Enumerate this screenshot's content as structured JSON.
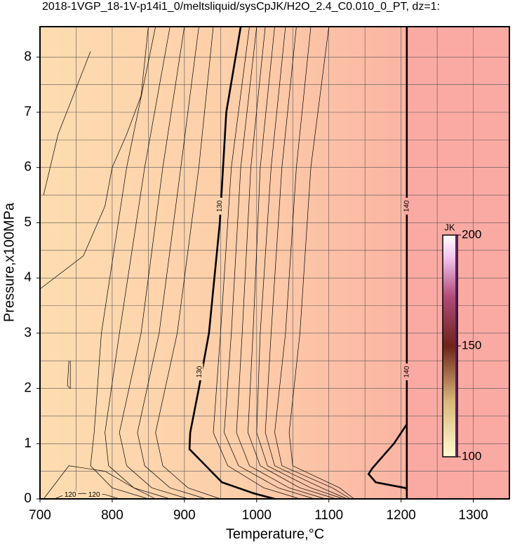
{
  "chart_data": {
    "type": "contour",
    "title": "2018-1VGP_18-1V-p14i1_0/meltsliquid/sysCpJK/H2O_2.4_C0.010_0_PT, dz=1:",
    "xlabel": "Temperature,°C",
    "ylabel": "Pressure,x100MPa",
    "xlim": [
      700,
      1350
    ],
    "ylim": [
      0,
      8.55
    ],
    "xticks": [
      700,
      800,
      900,
      1000,
      1100,
      1200,
      1300
    ],
    "yticks": [
      0,
      1,
      2,
      3,
      4,
      5,
      6,
      7,
      8
    ],
    "xgrid": [
      750,
      800,
      850,
      900,
      950,
      1000,
      1050,
      1100,
      1150,
      1200,
      1250,
      1300
    ],
    "ygrid": [
      0.5,
      1,
      1.5,
      2,
      2.5,
      3,
      3.5,
      4,
      4.5,
      5,
      5.5,
      6,
      6.5,
      7,
      7.5,
      8
    ],
    "grid": true,
    "contours": [
      {
        "level": 130,
        "x": [
          978,
          958,
          949,
          934,
          920,
          908,
          907,
          922,
          952,
          996,
          1025
        ],
        "y": [
          8.55,
          7,
          5,
          3,
          2,
          1.2,
          0.9,
          0.7,
          0.3,
          0.1,
          0
        ]
      },
      {
        "level": 140,
        "x": [
          1208,
          1208
        ],
        "y": [
          8.55,
          0
        ]
      },
      {
        "level": 140,
        "x": [
          1208,
          1190,
          1160,
          1155,
          1165,
          1205,
          1208
        ],
        "y": [
          1.35,
          1.0,
          0.55,
          0.45,
          0.3,
          0.2,
          0.18
        ]
      },
      {
        "level": 120,
        "x": [
          720,
          735,
          760,
          790,
          810
        ],
        "y": [
          0,
          0.08,
          0.1,
          0.08,
          0
        ]
      },
      {
        "x": [
          990,
          965,
          950,
          940,
          960,
          1010,
          1060
        ],
        "y": [
          8.55,
          6,
          3,
          1.2,
          0.6,
          0.2,
          0
        ]
      },
      {
        "x": [
          1000,
          978,
          965,
          955,
          975,
          1030,
          1080
        ],
        "y": [
          8.55,
          6,
          3,
          1.2,
          0.6,
          0.2,
          0
        ]
      },
      {
        "x": [
          1012,
          992,
          980,
          972,
          990,
          1045,
          1095
        ],
        "y": [
          8.55,
          6,
          3,
          1.2,
          0.6,
          0.2,
          0
        ]
      },
      {
        "x": [
          1025,
          1005,
          995,
          988,
          1005,
          1060,
          1110
        ],
        "y": [
          8.55,
          6,
          3,
          1.2,
          0.6,
          0.2,
          0
        ]
      },
      {
        "x": [
          1040,
          1020,
          1005,
          1000,
          1015,
          1075,
          1120
        ],
        "y": [
          8.55,
          6,
          3,
          1.2,
          0.6,
          0.2,
          0
        ]
      },
      {
        "x": [
          1055,
          1035,
          1020,
          1012,
          1025,
          1090,
          1125
        ],
        "y": [
          8.55,
          6,
          3,
          1.2,
          0.6,
          0.2,
          0
        ]
      },
      {
        "x": [
          1075,
          1055,
          1040,
          1025,
          1035,
          1105,
          1130
        ],
        "y": [
          8.55,
          6,
          3,
          1.2,
          0.6,
          0.2,
          0
        ]
      },
      {
        "x": [
          1100,
          1075,
          1060,
          1045,
          1050,
          1115,
          1135
        ],
        "y": [
          8.55,
          6,
          3,
          1.2,
          0.6,
          0.2,
          0
        ]
      },
      {
        "x": [
          940,
          920,
          890,
          860,
          870,
          905,
          950
        ],
        "y": [
          8.55,
          6,
          3,
          1.2,
          0.6,
          0.2,
          0
        ]
      },
      {
        "x": [
          920,
          895,
          865,
          835,
          845,
          880,
          930
        ],
        "y": [
          8.55,
          6,
          3,
          1.2,
          0.6,
          0.2,
          0
        ]
      },
      {
        "x": [
          900,
          870,
          840,
          810,
          820,
          855,
          905
        ],
        "y": [
          8.55,
          6,
          3,
          1.2,
          0.6,
          0.2,
          0
        ]
      },
      {
        "x": [
          880,
          845,
          810,
          790,
          795,
          830,
          880
        ],
        "y": [
          8.55,
          6,
          3,
          1.2,
          0.6,
          0.2,
          0
        ]
      },
      {
        "x": [
          860,
          820,
          785,
          775,
          770,
          800,
          850
        ],
        "y": [
          8.55,
          6,
          3,
          1.2,
          0.6,
          0.2,
          0
        ]
      },
      {
        "x": [
          705,
          740,
          790,
          830,
          860
        ],
        "y": [
          0,
          0.6,
          0.5,
          0.2,
          0
        ]
      },
      {
        "x": [
          700,
          760,
          790,
          800,
          820,
          840,
          850
        ],
        "y": [
          3.8,
          4.4,
          5.3,
          6,
          6.6,
          7.3,
          8.55
        ]
      },
      {
        "x": [
          705,
          725,
          770
        ],
        "y": [
          5.5,
          6.6,
          8.1
        ]
      },
      {
        "x": [
          740,
          738,
          742,
          742
        ],
        "y": [
          2.5,
          2.05,
          2.0,
          2.5
        ]
      }
    ],
    "contour_labels": [
      {
        "value": 130,
        "x": 949,
        "y": 5.3
      },
      {
        "value": 130,
        "x": 921,
        "y": 2.3
      },
      {
        "value": 140,
        "x": 1208,
        "y": 5.3
      },
      {
        "value": 140,
        "x": 1208,
        "y": 2.3
      },
      {
        "value": 120,
        "x": 742,
        "y": 0.07
      },
      {
        "value": 120,
        "x": 775,
        "y": 0.07
      }
    ],
    "colorbar": {
      "label": "JK",
      "clim": [
        100,
        200
      ],
      "ticks": [
        100,
        150,
        200
      ]
    }
  }
}
